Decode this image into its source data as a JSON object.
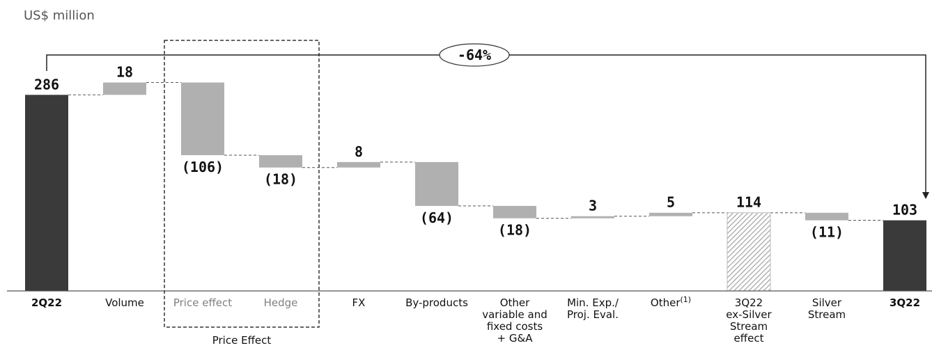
{
  "chart_data": {
    "type": "waterfall",
    "unit_label": "US$ million",
    "categories": [
      {
        "key": "2q22",
        "label": [
          "2Q22"
        ],
        "value": 286,
        "value_label": "286",
        "kind": "total",
        "bold": true
      },
      {
        "key": "volume",
        "label": [
          "Volume"
        ],
        "value": 18,
        "value_label": "18",
        "kind": "increase"
      },
      {
        "key": "price-effect",
        "label": [
          "Price effect"
        ],
        "value": -106,
        "value_label": "(106)",
        "kind": "decrease",
        "muted": true
      },
      {
        "key": "hedge",
        "label": [
          "Hedge"
        ],
        "value": -18,
        "value_label": "(18)",
        "kind": "decrease",
        "muted": true
      },
      {
        "key": "fx",
        "label": [
          "FX"
        ],
        "value": 8,
        "value_label": "8",
        "kind": "increase"
      },
      {
        "key": "by-products",
        "label": [
          "By-products"
        ],
        "value": -64,
        "value_label": "(64)",
        "kind": "decrease"
      },
      {
        "key": "other-costs",
        "label": [
          "Other",
          "variable and",
          "fixed costs",
          "+ G&A"
        ],
        "value": -18,
        "value_label": "(18)",
        "kind": "decrease"
      },
      {
        "key": "min-exp",
        "label": [
          "Min. Exp./",
          "Proj. Eval."
        ],
        "value": 3,
        "value_label": "3",
        "kind": "increase"
      },
      {
        "key": "other",
        "label": [
          "Other"
        ],
        "superscript": "(1)",
        "value": 5,
        "value_label": "5",
        "kind": "increase"
      },
      {
        "key": "3q22-ex-silver",
        "label": [
          "3Q22",
          "ex-Silver",
          "Stream",
          "effect"
        ],
        "value": 114,
        "value_label": "114",
        "kind": "subtotal"
      },
      {
        "key": "silver-stream",
        "label": [
          "Silver",
          "Stream"
        ],
        "value": -11,
        "value_label": "(11)",
        "kind": "decrease"
      },
      {
        "key": "3q22",
        "label": [
          "3Q22"
        ],
        "value": 103,
        "value_label": "103",
        "kind": "total",
        "bold": true
      }
    ],
    "group": {
      "label": "Price Effect",
      "members": [
        "price-effect",
        "hedge"
      ]
    },
    "change_callout": {
      "label": "-64%",
      "from": "2q22",
      "to": "3q22"
    },
    "colors": {
      "total": "#3a3a3a",
      "delta": "#b0b0b0",
      "subtotal_hatch": "#9a9a9a",
      "muted_label": "#808080"
    }
  }
}
